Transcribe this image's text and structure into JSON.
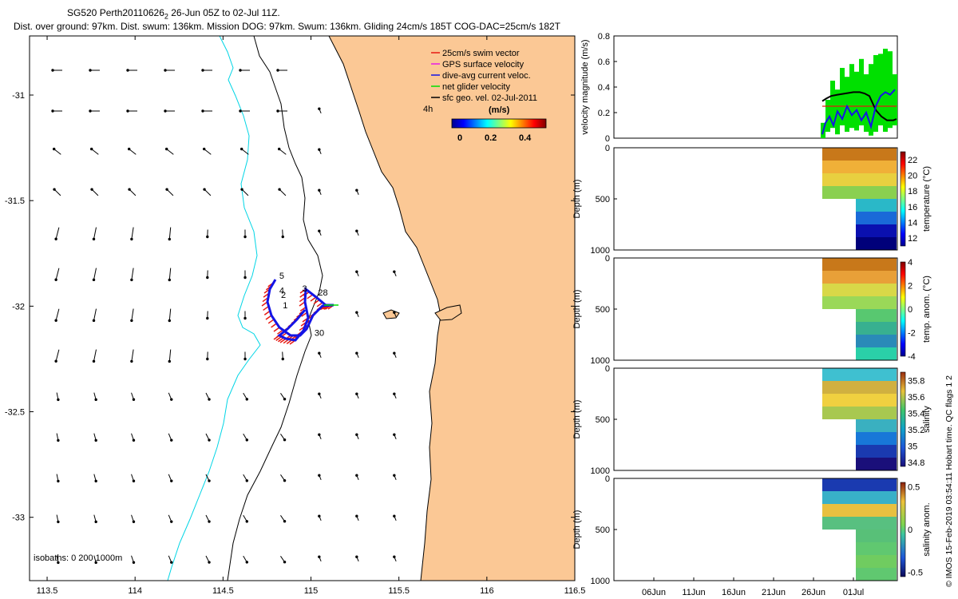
{
  "header": {
    "title_prefix": "SG520 Perth20110626",
    "title_sub": "2",
    "title_suffix": " 26-Jun 05Z to 02-Jul 11Z.",
    "subtitle": "Dist. over ground: 97km. Dist. swum: 136km. Mission DOG: 97km. Swum: 136km. Gliding 24cm/s 185T COG-DAC=25cm/s 182T"
  },
  "colors": {
    "land": "#fbc895",
    "sea": "#ffffff",
    "coast": "#000000",
    "isobath_200": "#000000",
    "isobath_1000": "#00d5e5",
    "track_red": "#e61a12",
    "track_blue": "#1414e6",
    "ekman_green": "#00e000",
    "geo_black": "#000000",
    "series_red": "#e61a12"
  },
  "chart_data": [
    {
      "type": "scatter",
      "name": "map",
      "xlim": [
        113.4,
        116.5
      ],
      "ylim": [
        -33.3,
        -30.72
      ],
      "xticks": [
        "113.5",
        "114",
        "114.5",
        "115",
        "115.5",
        "116",
        "116.5"
      ],
      "yticks": [
        "-31",
        "-31.5",
        "-32",
        "-32.5",
        "-33"
      ],
      "legend": {
        "items": [
          {
            "label": "25cm/s swim vector",
            "color": "#e61a12"
          },
          {
            "label": "GPS surface velocity",
            "color": "#e61ae6"
          },
          {
            "label": "dive-avg current veloc.",
            "color": "#1414e6"
          },
          {
            "label": "net glider velocity",
            "color": "#00e000"
          },
          {
            "label": "sfc geo. vel. 02-Jul-2011",
            "color": "#000000"
          }
        ],
        "placement": "top-right"
      },
      "time_label": "4h",
      "colorbar": {
        "label": "(m/s)",
        "ticks": [
          "0",
          "0.2",
          "0.4"
        ],
        "range": [
          0,
          0.45
        ]
      },
      "isobath_label": "isobaths: 0   200   1000m",
      "day_labels": [
        {
          "text": "5",
          "lon": 114.82,
          "lat": -31.87
        },
        {
          "text": "4",
          "lon": 114.82,
          "lat": -31.94
        },
        {
          "text": "2",
          "lon": 114.83,
          "lat": -31.96
        },
        {
          "text": "3",
          "lon": 114.95,
          "lat": -31.93
        },
        {
          "text": "1",
          "lon": 114.84,
          "lat": -32.01
        },
        {
          "text": "28",
          "lon": 115.04,
          "lat": -31.95
        },
        {
          "text": "30",
          "lon": 115.02,
          "lat": -32.14
        }
      ]
    },
    {
      "type": "line",
      "name": "velocity magnitude",
      "ylabel": "velocity magnitude (m/s)",
      "ylim": [
        0,
        0.8
      ],
      "yticks": [
        "0",
        "0.2",
        "0.4",
        "0.6",
        "0.8"
      ],
      "xticks": [
        "06Jun",
        "11Jun",
        "16Jun",
        "21Jun",
        "26Jun",
        "01Jul"
      ],
      "xrange_days": [
        0,
        35.5
      ],
      "series": [
        {
          "color": "#e61a12",
          "x": [
            26.1,
            35.4
          ],
          "y": [
            0.25,
            0.25
          ]
        },
        {
          "color": "#000000",
          "x": [
            26.1,
            26.6,
            27.2,
            28,
            29,
            30,
            30.8,
            31.4,
            32,
            32.8,
            33.5,
            34.2,
            35.0,
            35.4
          ],
          "y": [
            0.29,
            0.31,
            0.33,
            0.34,
            0.35,
            0.36,
            0.36,
            0.35,
            0.33,
            0.22,
            0.17,
            0.14,
            0.14,
            0.15
          ]
        },
        {
          "color": "#1414e6",
          "x": [
            26.1,
            26.5,
            27,
            27.5,
            28,
            28.6,
            29.2,
            29.8,
            30.4,
            31,
            31.6,
            32.2,
            32.8,
            33.4,
            34,
            34.6,
            35.2
          ],
          "y": [
            0.03,
            0.12,
            0.17,
            0.1,
            0.21,
            0.15,
            0.25,
            0.18,
            0.22,
            0.14,
            0.2,
            0.09,
            0.25,
            0.33,
            0.36,
            0.34,
            0.38
          ]
        }
      ],
      "green_bars": [
        {
          "x": 26.2,
          "lo": 0.0,
          "hi": 0.12
        },
        {
          "x": 26.8,
          "lo": 0.05,
          "hi": 0.3
        },
        {
          "x": 27.4,
          "lo": 0.08,
          "hi": 0.45
        },
        {
          "x": 28.0,
          "lo": 0.03,
          "hi": 0.38
        },
        {
          "x": 28.6,
          "lo": 0.1,
          "hi": 0.55
        },
        {
          "x": 29.2,
          "lo": 0.05,
          "hi": 0.48
        },
        {
          "x": 29.8,
          "lo": 0.08,
          "hi": 0.58
        },
        {
          "x": 30.4,
          "lo": 0.06,
          "hi": 0.52
        },
        {
          "x": 31.0,
          "lo": 0.1,
          "hi": 0.62
        },
        {
          "x": 31.6,
          "lo": 0.05,
          "hi": 0.5
        },
        {
          "x": 32.2,
          "lo": 0.02,
          "hi": 0.58
        },
        {
          "x": 32.8,
          "lo": 0.05,
          "hi": 0.65
        },
        {
          "x": 33.4,
          "lo": 0.1,
          "hi": 0.66
        },
        {
          "x": 34.0,
          "lo": 0.05,
          "hi": 0.7
        },
        {
          "x": 34.6,
          "lo": 0.08,
          "hi": 0.68
        },
        {
          "x": 35.2,
          "lo": 0.1,
          "hi": 0.5
        }
      ]
    },
    {
      "type": "heatmap",
      "name": "temperature",
      "ylabel": "Depth (m)",
      "ylim": [
        0,
        1000
      ],
      "yticks": [
        "0",
        "500",
        "1000"
      ],
      "colorbar": {
        "label": "temperature (°C)",
        "ticks": [
          "12",
          "14",
          "16",
          "18",
          "20",
          "22"
        ],
        "range": [
          11,
          23
        ]
      }
    },
    {
      "type": "heatmap",
      "name": "temp. anom.",
      "ylabel": "Depth (m)",
      "ylim": [
        0,
        1000
      ],
      "yticks": [
        "0",
        "500",
        "1000"
      ],
      "colorbar": {
        "label": "temp. anom. (°C)",
        "ticks": [
          "-4",
          "-2",
          "0",
          "2",
          "4"
        ],
        "range": [
          -4,
          4
        ]
      }
    },
    {
      "type": "heatmap",
      "name": "salinity",
      "ylabel": "Depth (m)",
      "ylim": [
        0,
        1000
      ],
      "yticks": [
        "0",
        "500",
        "1000"
      ],
      "colorbar": {
        "label": "salinity",
        "ticks": [
          "34.8",
          "35",
          "35.2",
          "35.4",
          "35.6",
          "35.8"
        ],
        "range": [
          34.75,
          35.9
        ]
      }
    },
    {
      "type": "heatmap",
      "name": "salinity anom.",
      "ylabel": "Depth (m)",
      "ylim": [
        0,
        1000
      ],
      "yticks": [
        "0",
        "500",
        "1000"
      ],
      "colorbar": {
        "label": "salinity anom.",
        "ticks": [
          "-0.5",
          "0",
          "0.5"
        ],
        "range": [
          -0.55,
          0.55
        ]
      }
    }
  ],
  "footer": {
    "stamp": "© IMOS 15-Feb-2019 03:54:11 Hobart time. QC flags 1  2"
  }
}
